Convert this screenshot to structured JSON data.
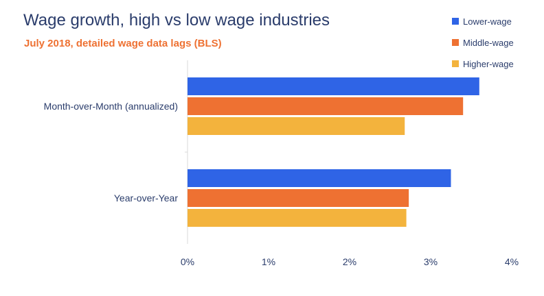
{
  "chart_data": {
    "type": "bar",
    "orientation": "horizontal",
    "title": "Wage growth, high vs low wage industries",
    "subtitle": "July 2018, detailed wage data lags (BLS)",
    "categories": [
      "Month-over-Month (annualized)",
      "Year-over-Year"
    ],
    "series": [
      {
        "name": "Lower-wage",
        "color": "#2f64e6",
        "values": [
          3.6,
          3.25
        ]
      },
      {
        "name": "Middle-wage",
        "color": "#ee7132",
        "values": [
          3.4,
          2.73
        ]
      },
      {
        "name": "Higher-wage",
        "color": "#f3b33d",
        "values": [
          2.68,
          2.7
        ]
      }
    ],
    "xlim": [
      0,
      4
    ],
    "xticks": [
      0,
      1,
      2,
      3,
      4
    ],
    "xtick_labels": [
      "0%",
      "1%",
      "2%",
      "3%",
      "4%"
    ],
    "xlabel": "",
    "ylabel": "",
    "grid": false,
    "legend_position": "top-right"
  }
}
